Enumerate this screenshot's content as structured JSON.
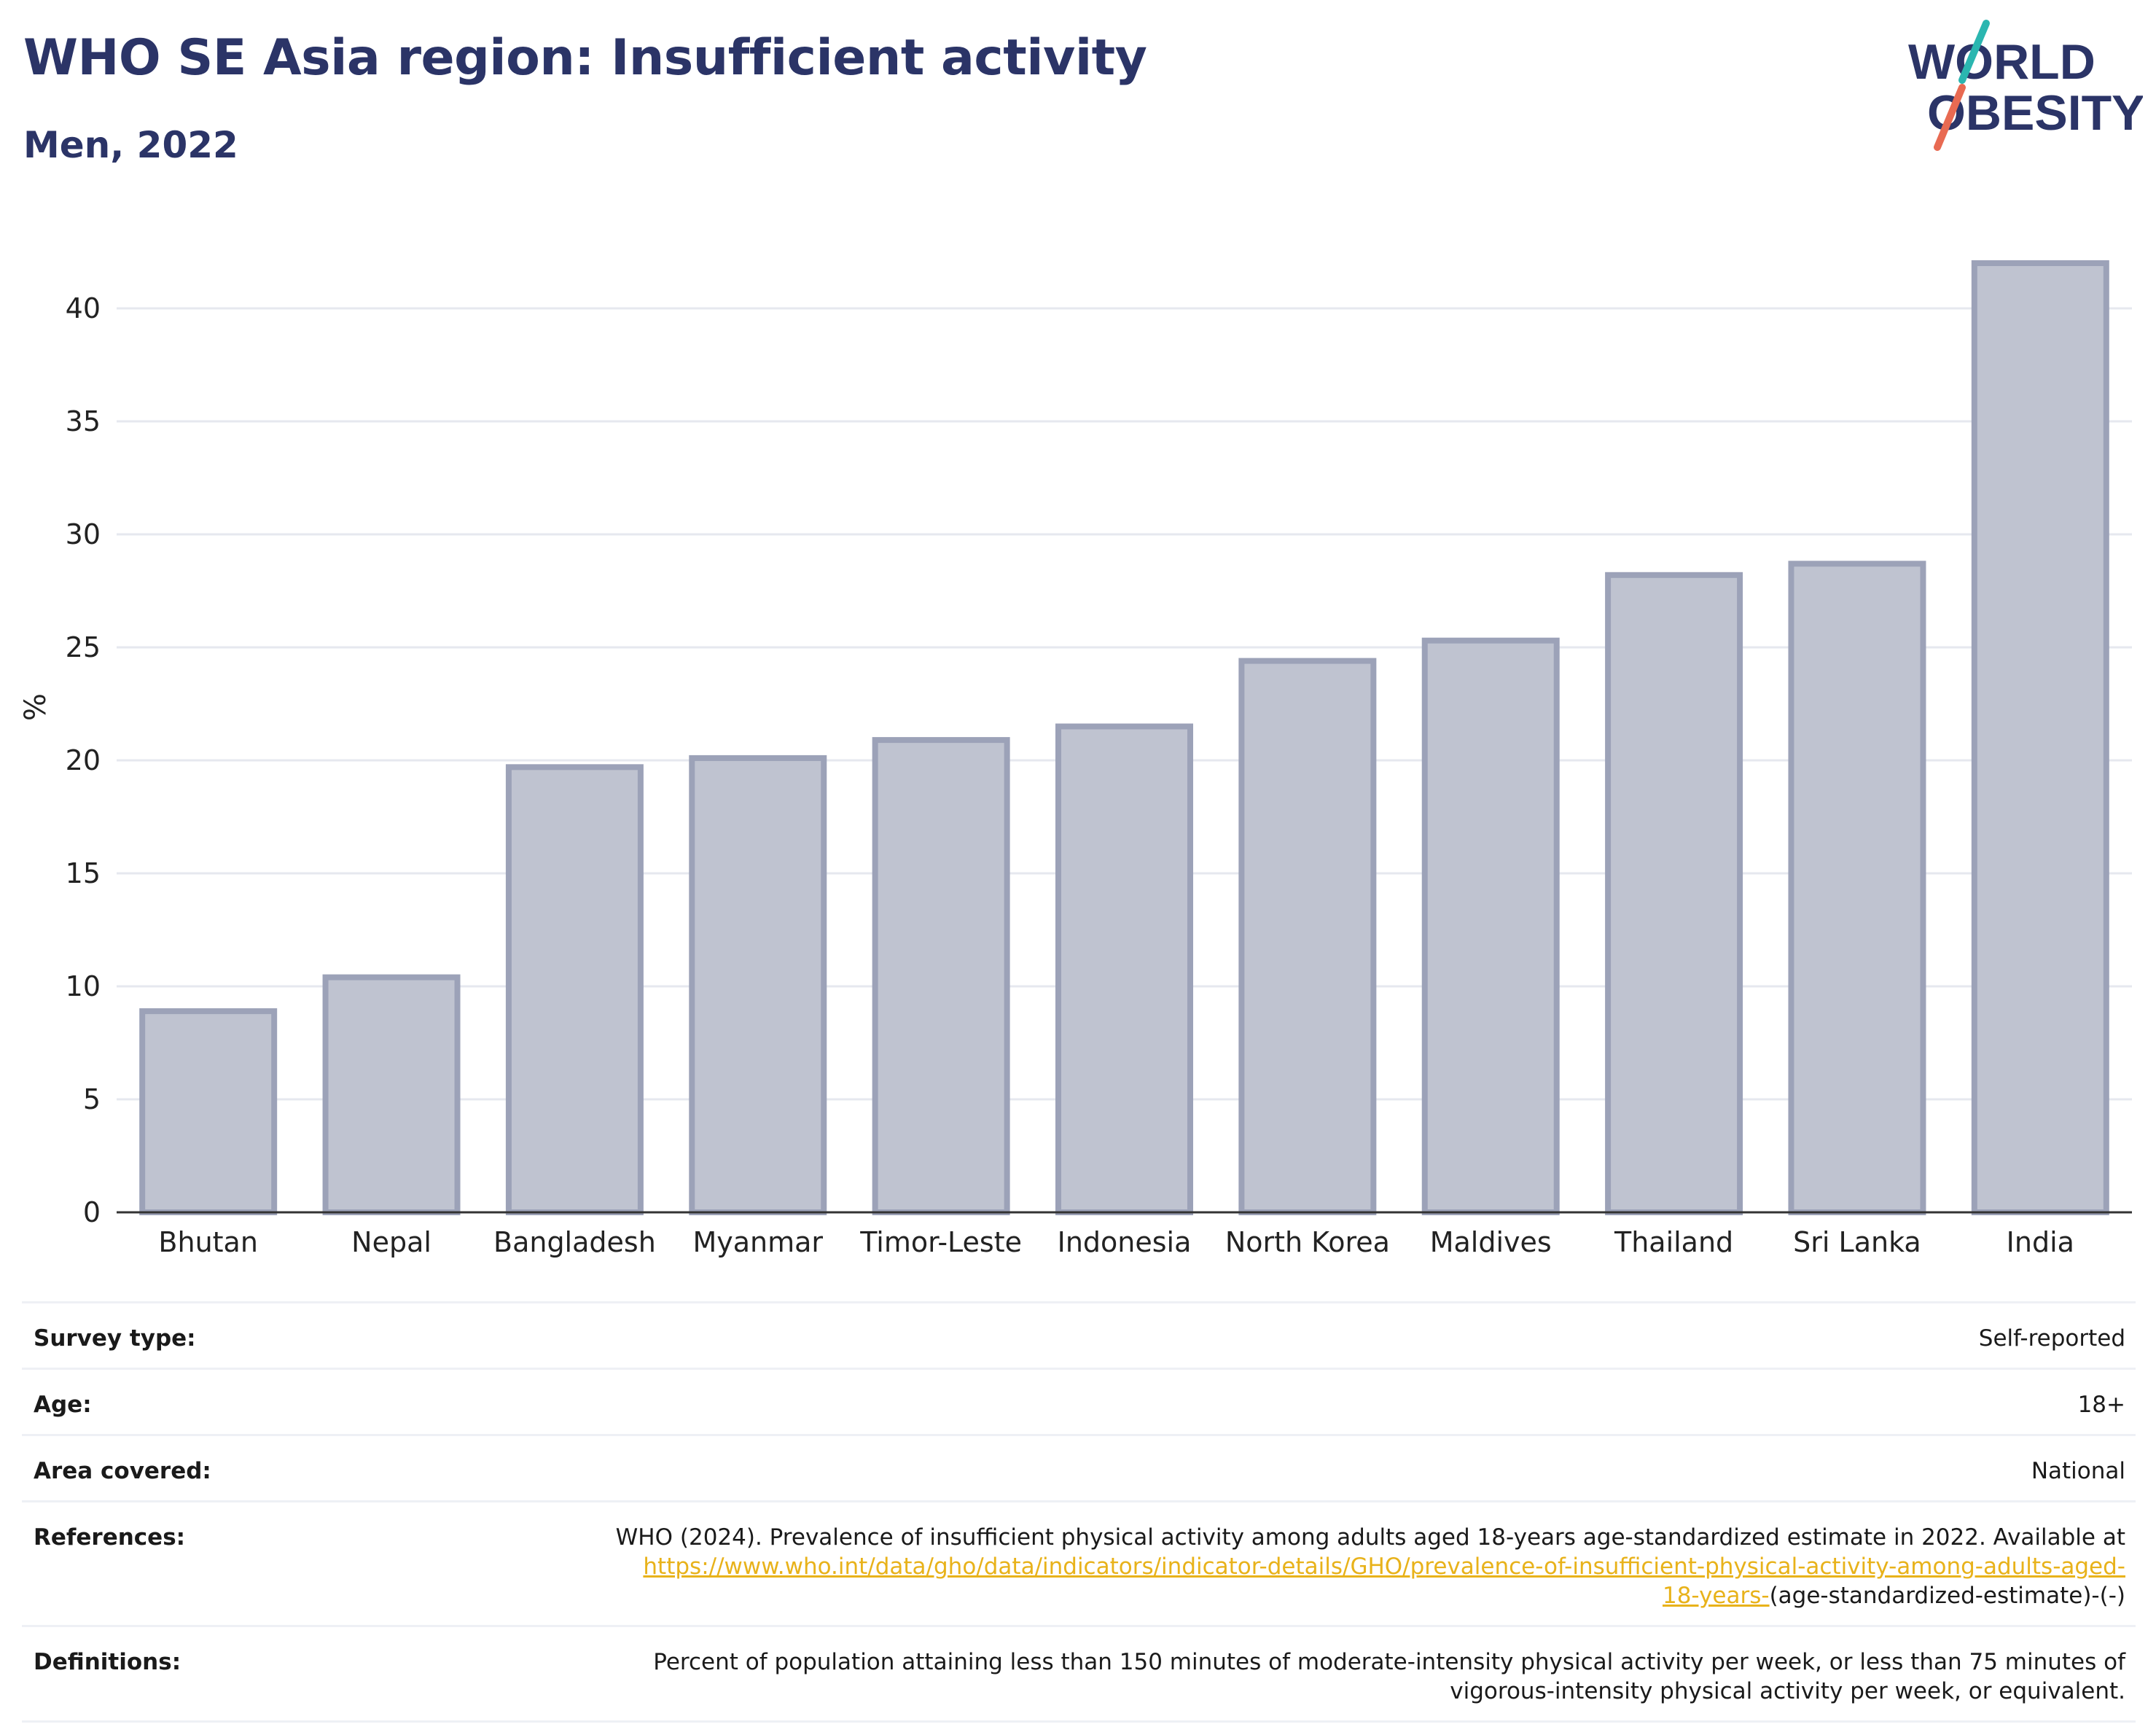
{
  "header": {
    "title": "WHO SE Asia region: Insufficient activity",
    "subtitle": "Men, 2022"
  },
  "logo": {
    "line1": "WORLD",
    "line2": "OBESITY",
    "colors": {
      "text": "#2b3467",
      "slash_top": "#2bb6b0",
      "slash_bottom": "#e86a52"
    }
  },
  "chart_data": {
    "type": "bar",
    "title": "WHO SE Asia region: Insufficient activity",
    "subtitle": "Men, 2022",
    "xlabel": "",
    "ylabel": "%",
    "ylim": [
      0,
      43
    ],
    "yticks": [
      0,
      5,
      10,
      15,
      20,
      25,
      30,
      35,
      40
    ],
    "grid": true,
    "categories": [
      "Bhutan",
      "Nepal",
      "Bangladesh",
      "Myanmar",
      "Timor-Leste",
      "Indonesia",
      "North Korea",
      "Maldives",
      "Thailand",
      "Sri Lanka",
      "India"
    ],
    "values": [
      8.9,
      10.4,
      19.7,
      20.1,
      20.9,
      21.5,
      24.4,
      25.3,
      28.2,
      28.7,
      42.0
    ],
    "colors": {
      "bar_fill": "#bfc3d0",
      "bar_stroke": "#9ca2b8",
      "grid": "#e6e8ef",
      "axis": "#333333"
    }
  },
  "meta": {
    "rows": [
      {
        "label": "Survey type:",
        "value": "Self-reported"
      },
      {
        "label": "Age:",
        "value": "18+"
      },
      {
        "label": "Area covered:",
        "value": "National"
      }
    ],
    "references": {
      "label": "References:",
      "text": "WHO (2024). Prevalence of insufficient physical activity among adults aged 18-years age-standardized estimate in 2022. Available at",
      "link_line1": "https://www.who.int/data/gho/data/indicators/indicator-details/GHO/prevalence-of-insufficient-physical-activity-among-adults-aged-",
      "link_line2": "18-years-",
      "suffix": "(age-standardized-estimate)-(-)"
    },
    "definitions": {
      "label": "Definitions:",
      "line1": "Percent of population attaining less than 150 minutes of moderate-intensity physical activity per week, or less than 75 minutes of",
      "line2": "vigorous-intensity physical activity per week, or equivalent."
    }
  }
}
